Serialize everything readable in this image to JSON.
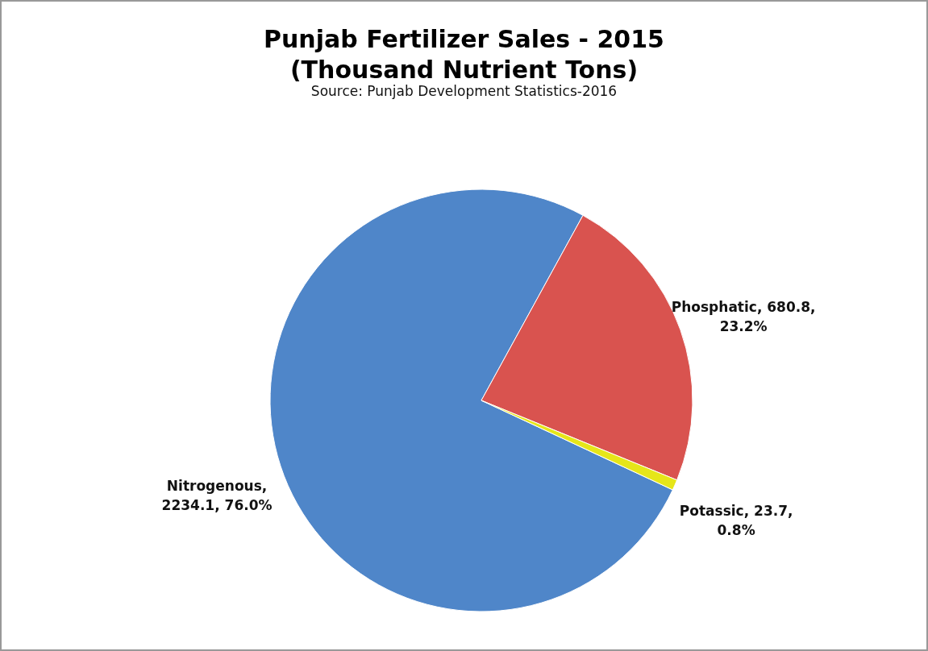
{
  "chart_data": {
    "type": "pie",
    "title": "Punjab Fertilizer Sales - 2015\n(Thousand Nutrient Tons)",
    "annotations": [
      "Source: Punjab Development Statistics-2016"
    ],
    "categories": [
      "Nitrogenous",
      "Phosphatic",
      "Potassic"
    ],
    "values": [
      2234.1,
      680.8,
      23.7
    ],
    "value_labels": [
      ", 2234.1, 76.0%",
      ", 680.8, 23.2%",
      ", 23.7, 0.8%"
    ],
    "colors": [
      "#4f86c9",
      "#d9534f",
      "#e6e619"
    ],
    "legend": false
  }
}
